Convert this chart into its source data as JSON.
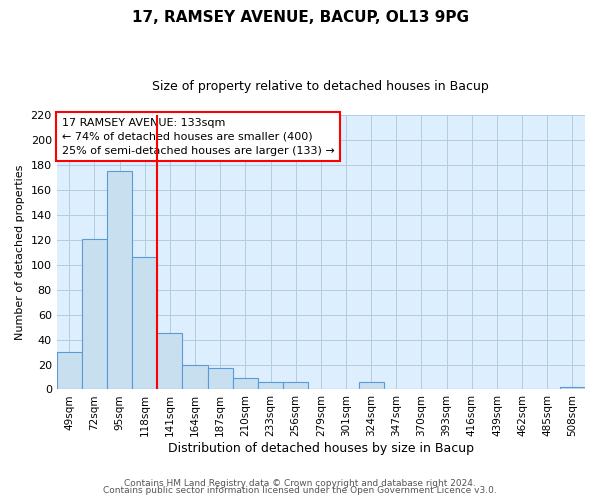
{
  "title": "17, RAMSEY AVENUE, BACUP, OL13 9PG",
  "subtitle": "Size of property relative to detached houses in Bacup",
  "xlabel": "Distribution of detached houses by size in Bacup",
  "ylabel": "Number of detached properties",
  "bar_labels": [
    "49sqm",
    "72sqm",
    "95sqm",
    "118sqm",
    "141sqm",
    "164sqm",
    "187sqm",
    "210sqm",
    "233sqm",
    "256sqm",
    "279sqm",
    "301sqm",
    "324sqm",
    "347sqm",
    "370sqm",
    "393sqm",
    "416sqm",
    "439sqm",
    "462sqm",
    "485sqm",
    "508sqm"
  ],
  "bar_values": [
    30,
    121,
    175,
    106,
    45,
    20,
    17,
    9,
    6,
    6,
    0,
    0,
    6,
    0,
    0,
    0,
    0,
    0,
    0,
    0,
    2
  ],
  "bar_color": "#c8dff0",
  "bar_edge_color": "#5b9bd5",
  "vline_color": "red",
  "ylim": [
    0,
    220
  ],
  "yticks": [
    0,
    20,
    40,
    60,
    80,
    100,
    120,
    140,
    160,
    180,
    200,
    220
  ],
  "annotation_title": "17 RAMSEY AVENUE: 133sqm",
  "annotation_line1": "← 74% of detached houses are smaller (400)",
  "annotation_line2": "25% of semi-detached houses are larger (133) →",
  "annotation_box_color": "red",
  "plot_bg_color": "#ddeeff",
  "fig_bg_color": "#ffffff",
  "grid_color": "#b0cce0",
  "footer1": "Contains HM Land Registry data © Crown copyright and database right 2024.",
  "footer2": "Contains public sector information licensed under the Open Government Licence v3.0."
}
